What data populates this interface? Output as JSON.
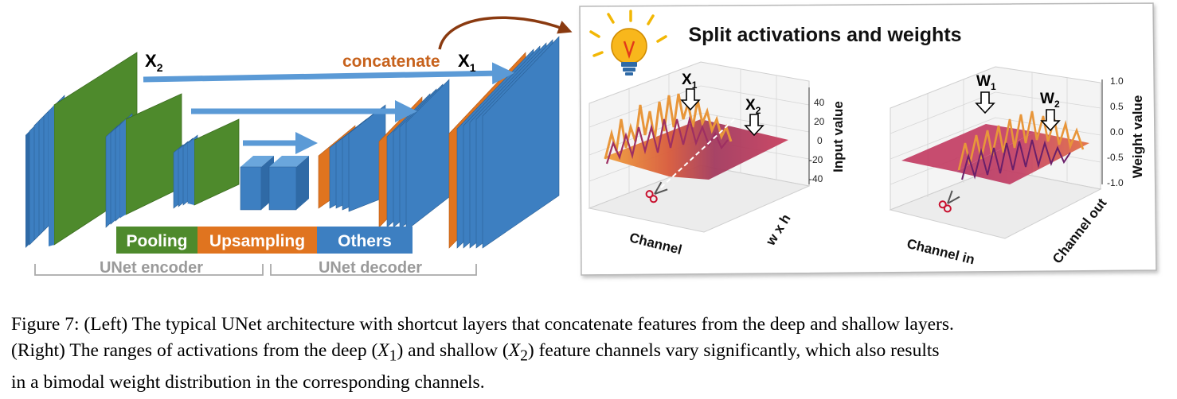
{
  "left": {
    "label_x2": "X",
    "label_x2_sub": "2",
    "concat_word": "concatenate",
    "label_x1": "X",
    "label_x1_sub": "1",
    "legend": {
      "pooling": "Pooling",
      "upsampling": "Upsampling",
      "others": "Others"
    },
    "encoder_label": "UNet encoder",
    "decoder_label": "UNet decoder",
    "colors": {
      "pooling": "#4e8a2c",
      "upsampling": "#e0741f",
      "others": "#3d7fc1",
      "arrow": "#5b9ad6"
    }
  },
  "right": {
    "title": "Split activations and weights",
    "plot1": {
      "marker_x1": "X",
      "marker_x1_sub": "1",
      "marker_x2": "X",
      "marker_x2_sub": "2",
      "zticks": [
        "40",
        "20",
        "0",
        "-20",
        "-40"
      ],
      "zlabel": "Input value",
      "xlabel": "Channel",
      "ylabel": "w x h"
    },
    "plot2": {
      "marker_w1": "W",
      "marker_w1_sub": "1",
      "marker_w2": "W",
      "marker_w2_sub": "2",
      "zticks": [
        "1.0",
        "0.5",
        "0.0",
        "-0.5",
        "-1.0"
      ],
      "zlabel": "Weight value",
      "xlabel": "Channel in",
      "ylabel": "Channel out"
    }
  },
  "caption": {
    "line1": "Figure 7: (Left) The typical UNet architecture with shortcut layers that concatenate features from the deep and shallow layers.",
    "line2_a": "(Right) The ranges of activations from the deep (",
    "line2_x1": "X",
    "line2_x1_sub": "1",
    "line2_b": ") and shallow (",
    "line2_x2": "X",
    "line2_x2_sub": "2",
    "line2_c": ") feature channels vary significantly, which also results",
    "line3": "in a bimodal weight distribution in the corresponding channels."
  }
}
